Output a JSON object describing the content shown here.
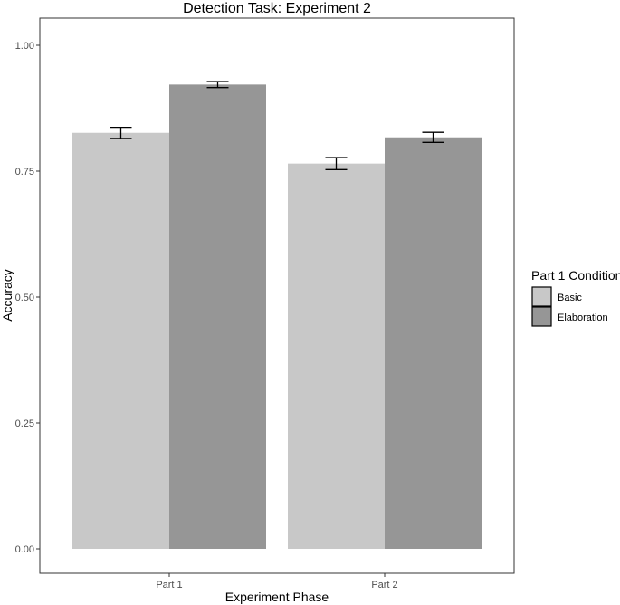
{
  "chart_data": {
    "type": "bar",
    "title": "Detection Task: Experiment 2",
    "xlabel": "Experiment Phase",
    "ylabel": "Accuracy",
    "categories": [
      "Part 1",
      "Part 2"
    ],
    "ylim": [
      0,
      1.06
    ],
    "yticks": [
      "0.00",
      "0.25",
      "0.50",
      "0.75",
      "1.00"
    ],
    "grid": false,
    "legend_title": "Part 1 Condition",
    "legend_position": "right",
    "series": [
      {
        "name": "Basic",
        "color": "#c8c8c8",
        "values": [
          0.826,
          0.765
        ],
        "errors": [
          0.011,
          0.012
        ]
      },
      {
        "name": "Elaboration",
        "color": "#969696",
        "values": [
          0.922,
          0.817
        ],
        "errors": [
          0.006,
          0.01
        ]
      }
    ]
  }
}
